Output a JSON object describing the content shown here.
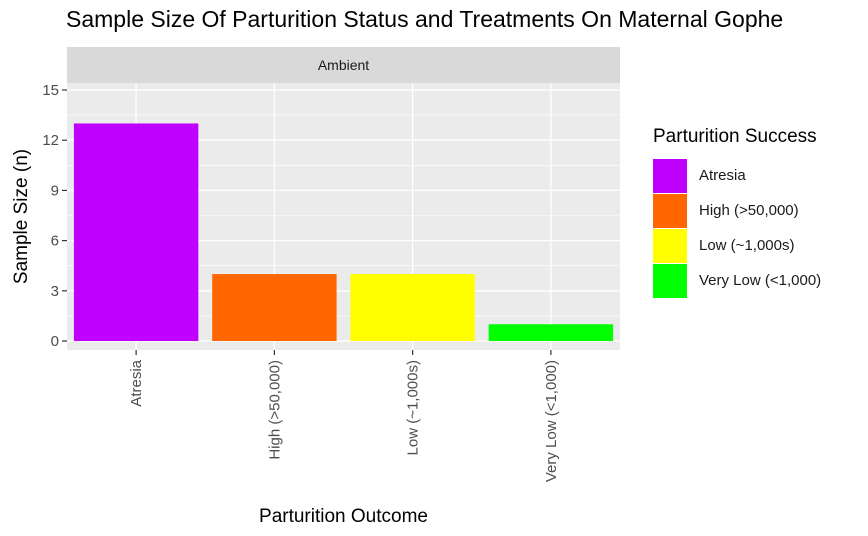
{
  "chart_data": {
    "type": "bar",
    "title": "Sample Size Of Parturition Status and Treatments On Maternal Gophe",
    "facet": "Ambient",
    "xlabel": "Parturition Outcome",
    "ylabel": "Sample Size (n)",
    "ylim": [
      0,
      15
    ],
    "yticks": [
      0,
      3,
      6,
      9,
      12,
      15
    ],
    "grid": true,
    "categories": [
      "Atresia",
      "High (>50,000)",
      "Low (~1,000s)",
      "Very Low (<1,000)"
    ],
    "values": [
      13,
      4,
      4,
      1
    ],
    "colors": [
      "#bf00ff",
      "#ff6600",
      "#ffff00",
      "#00ff00"
    ],
    "legend": {
      "title": "Parturition Success",
      "placement": "right",
      "entries": [
        "Atresia",
        "High (>50,000)",
        "Low (~1,000s)",
        "Very Low (<1,000)"
      ]
    }
  }
}
